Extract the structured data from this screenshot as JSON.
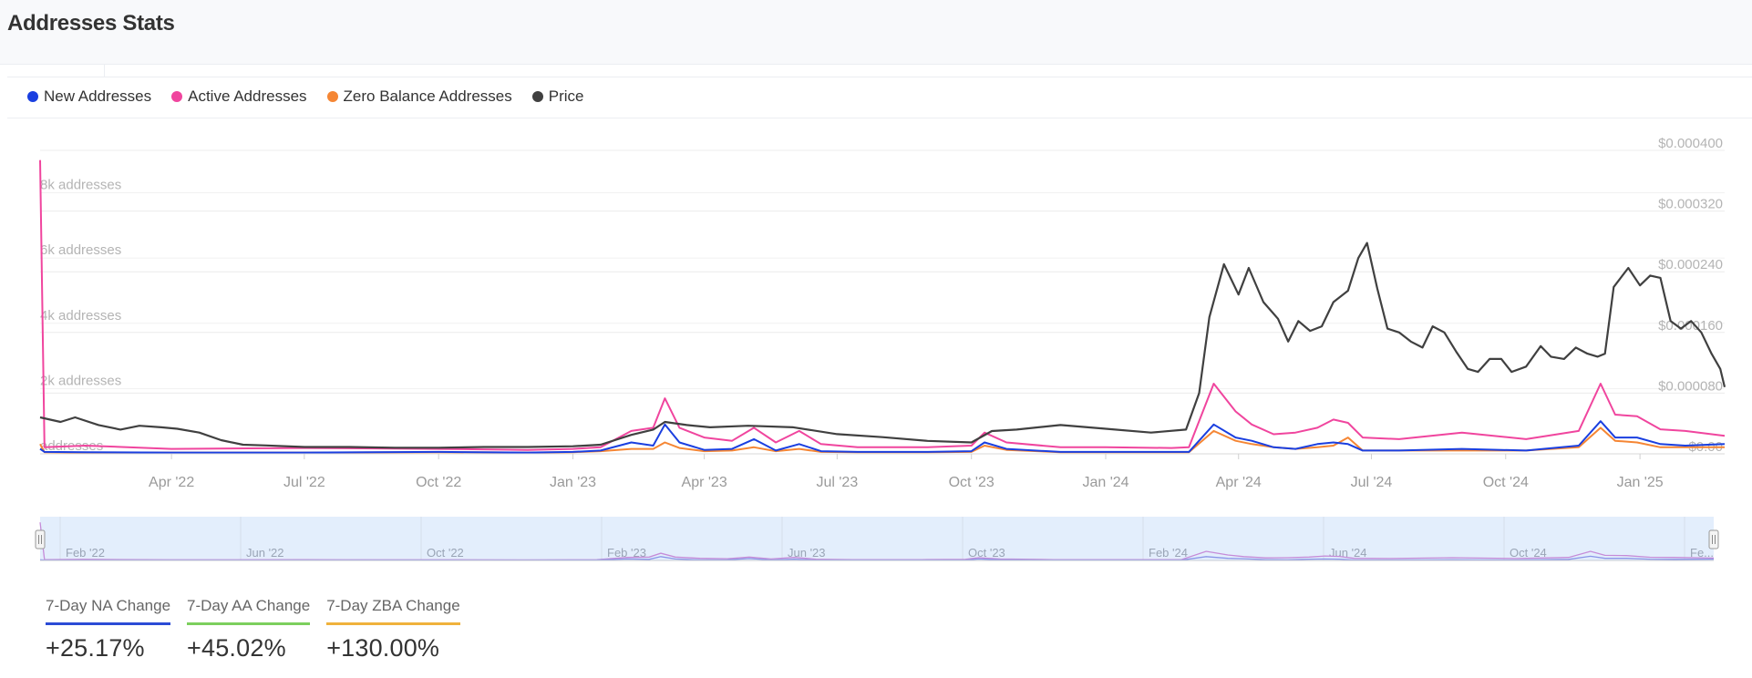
{
  "page": {
    "title": "Addresses Stats"
  },
  "legend": [
    {
      "label": "New Addresses",
      "color": "#1a3fe0"
    },
    {
      "label": "Active Addresses",
      "color": "#f0459e"
    },
    {
      "label": "Zero Balance Addresses",
      "color": "#f58634"
    },
    {
      "label": "Price",
      "color": "#404040"
    }
  ],
  "stats": [
    {
      "label": "7-Day NA Change",
      "value": "+25.17%",
      "color": "#2b4bd6"
    },
    {
      "label": "7-Day AA Change",
      "value": "+45.02%",
      "color": "#7ccf5d"
    },
    {
      "label": "7-Day ZBA Change",
      "value": "+130.00%",
      "color": "#f0b23c"
    }
  ],
  "navigator": {
    "labels": [
      "Feb '22",
      "Jun '22",
      "Oct '22",
      "Feb '23",
      "Jun '23",
      "Oct '23",
      "Feb '24",
      "Jun '24",
      "Oct '24",
      "Fe..."
    ]
  },
  "chart_data": {
    "type": "line",
    "x_axis": {
      "ticks": [
        "Apr '22",
        "Jul '22",
        "Oct '22",
        "Jan '23",
        "Apr '23",
        "Jul '23",
        "Oct '23",
        "Jan '24",
        "Apr '24",
        "Jul '24",
        "Oct '24",
        "Jan '25"
      ],
      "range": [
        "2022-01-01",
        "2025-02-28"
      ]
    },
    "y_axis_left": {
      "range": [
        0,
        9300
      ],
      "ticks": [
        {
          "value": 0,
          "label": "addresses"
        },
        {
          "value": 2000,
          "label": "2k addresses"
        },
        {
          "value": 4000,
          "label": "4k addresses"
        },
        {
          "value": 6000,
          "label": "6k addresses"
        },
        {
          "value": 8000,
          "label": "8k addresses"
        }
      ]
    },
    "y_axis_right": {
      "range": [
        0,
        0.0004
      ],
      "ticks": [
        {
          "value": 0,
          "label": "$0.00"
        },
        {
          "value": 8e-05,
          "label": "$0.000080"
        },
        {
          "value": 0.00016,
          "label": "$0.000160"
        },
        {
          "value": 0.00024,
          "label": "$0.000240"
        },
        {
          "value": 0.00032,
          "label": "$0.000320"
        },
        {
          "value": 0.0004,
          "label": "$0.000400"
        }
      ]
    },
    "grid": true,
    "legend_position": "top-left",
    "series": [
      {
        "name": "New Addresses",
        "color": "#1a3fe0",
        "axis": "left",
        "points": [
          [
            "2022-01-01",
            150
          ],
          [
            "2022-01-04",
            60
          ],
          [
            "2022-02-01",
            50
          ],
          [
            "2022-04-01",
            40
          ],
          [
            "2022-07-01",
            40
          ],
          [
            "2022-10-01",
            60
          ],
          [
            "2022-12-01",
            40
          ],
          [
            "2023-01-01",
            60
          ],
          [
            "2023-01-20",
            100
          ],
          [
            "2023-02-10",
            350
          ],
          [
            "2023-02-25",
            250
          ],
          [
            "2023-03-05",
            900
          ],
          [
            "2023-03-15",
            350
          ],
          [
            "2023-04-01",
            120
          ],
          [
            "2023-04-20",
            150
          ],
          [
            "2023-05-05",
            450
          ],
          [
            "2023-05-20",
            100
          ],
          [
            "2023-06-05",
            300
          ],
          [
            "2023-06-20",
            80
          ],
          [
            "2023-07-15",
            60
          ],
          [
            "2023-09-01",
            60
          ],
          [
            "2023-10-01",
            80
          ],
          [
            "2023-10-10",
            350
          ],
          [
            "2023-10-25",
            150
          ],
          [
            "2023-12-01",
            60
          ],
          [
            "2024-01-01",
            60
          ],
          [
            "2024-02-15",
            60
          ],
          [
            "2024-02-27",
            60
          ],
          [
            "2024-03-15",
            900
          ],
          [
            "2024-03-30",
            500
          ],
          [
            "2024-04-10",
            400
          ],
          [
            "2024-04-25",
            200
          ],
          [
            "2024-05-10",
            150
          ],
          [
            "2024-05-25",
            300
          ],
          [
            "2024-06-05",
            350
          ],
          [
            "2024-06-15",
            300
          ],
          [
            "2024-06-25",
            100
          ],
          [
            "2024-07-20",
            100
          ],
          [
            "2024-09-01",
            150
          ],
          [
            "2024-10-15",
            100
          ],
          [
            "2024-11-20",
            250
          ],
          [
            "2024-12-05",
            1000
          ],
          [
            "2024-12-15",
            500
          ],
          [
            "2024-12-30",
            500
          ],
          [
            "2025-01-15",
            300
          ],
          [
            "2025-02-01",
            250
          ],
          [
            "2025-02-28",
            300
          ]
        ]
      },
      {
        "name": "Active Addresses",
        "color": "#f0459e",
        "axis": "left",
        "points": [
          [
            "2022-01-01",
            9000
          ],
          [
            "2022-01-04",
            200
          ],
          [
            "2022-02-01",
            250
          ],
          [
            "2022-04-01",
            150
          ],
          [
            "2022-07-01",
            180
          ],
          [
            "2022-10-01",
            150
          ],
          [
            "2022-12-01",
            120
          ],
          [
            "2023-01-01",
            150
          ],
          [
            "2023-01-20",
            200
          ],
          [
            "2023-02-10",
            700
          ],
          [
            "2023-02-25",
            800
          ],
          [
            "2023-03-05",
            1700
          ],
          [
            "2023-03-15",
            800
          ],
          [
            "2023-04-01",
            500
          ],
          [
            "2023-04-20",
            400
          ],
          [
            "2023-05-05",
            800
          ],
          [
            "2023-05-20",
            350
          ],
          [
            "2023-06-05",
            700
          ],
          [
            "2023-06-20",
            300
          ],
          [
            "2023-07-15",
            200
          ],
          [
            "2023-09-01",
            200
          ],
          [
            "2023-10-01",
            250
          ],
          [
            "2023-10-10",
            650
          ],
          [
            "2023-10-25",
            350
          ],
          [
            "2023-12-01",
            200
          ],
          [
            "2024-01-01",
            200
          ],
          [
            "2024-02-15",
            180
          ],
          [
            "2024-02-27",
            200
          ],
          [
            "2024-03-15",
            2150
          ],
          [
            "2024-03-30",
            1300
          ],
          [
            "2024-04-10",
            900
          ],
          [
            "2024-04-25",
            600
          ],
          [
            "2024-05-10",
            650
          ],
          [
            "2024-05-25",
            800
          ],
          [
            "2024-06-05",
            1050
          ],
          [
            "2024-06-15",
            950
          ],
          [
            "2024-06-25",
            500
          ],
          [
            "2024-07-20",
            450
          ],
          [
            "2024-09-01",
            650
          ],
          [
            "2024-10-15",
            450
          ],
          [
            "2024-11-20",
            700
          ],
          [
            "2024-12-05",
            2150
          ],
          [
            "2024-12-15",
            1200
          ],
          [
            "2024-12-30",
            1150
          ],
          [
            "2025-01-15",
            750
          ],
          [
            "2025-02-01",
            700
          ],
          [
            "2025-02-28",
            550
          ]
        ]
      },
      {
        "name": "Zero Balance Addresses",
        "color": "#f58634",
        "axis": "left",
        "points": [
          [
            "2022-01-01",
            300
          ],
          [
            "2022-01-04",
            50
          ],
          [
            "2022-02-01",
            40
          ],
          [
            "2022-04-01",
            40
          ],
          [
            "2022-07-01",
            40
          ],
          [
            "2022-10-01",
            50
          ],
          [
            "2022-12-01",
            40
          ],
          [
            "2023-01-01",
            50
          ],
          [
            "2023-01-20",
            80
          ],
          [
            "2023-02-10",
            150
          ],
          [
            "2023-02-25",
            150
          ],
          [
            "2023-03-05",
            350
          ],
          [
            "2023-03-15",
            180
          ],
          [
            "2023-04-01",
            80
          ],
          [
            "2023-04-20",
            100
          ],
          [
            "2023-05-05",
            200
          ],
          [
            "2023-05-20",
            80
          ],
          [
            "2023-06-05",
            150
          ],
          [
            "2023-06-20",
            60
          ],
          [
            "2023-07-15",
            50
          ],
          [
            "2023-09-01",
            50
          ],
          [
            "2023-10-01",
            60
          ],
          [
            "2023-10-10",
            250
          ],
          [
            "2023-10-25",
            120
          ],
          [
            "2023-12-01",
            50
          ],
          [
            "2024-01-01",
            50
          ],
          [
            "2024-02-15",
            50
          ],
          [
            "2024-02-27",
            50
          ],
          [
            "2024-03-15",
            700
          ],
          [
            "2024-03-30",
            400
          ],
          [
            "2024-04-10",
            300
          ],
          [
            "2024-04-25",
            200
          ],
          [
            "2024-05-10",
            150
          ],
          [
            "2024-05-25",
            200
          ],
          [
            "2024-06-05",
            250
          ],
          [
            "2024-06-15",
            500
          ],
          [
            "2024-06-25",
            100
          ],
          [
            "2024-07-20",
            100
          ],
          [
            "2024-09-01",
            100
          ],
          [
            "2024-10-15",
            100
          ],
          [
            "2024-11-20",
            200
          ],
          [
            "2024-12-05",
            800
          ],
          [
            "2024-12-15",
            400
          ],
          [
            "2024-12-30",
            350
          ],
          [
            "2025-01-15",
            200
          ],
          [
            "2025-02-01",
            200
          ],
          [
            "2025-02-28",
            200
          ]
        ]
      },
      {
        "name": "Price",
        "color": "#404040",
        "axis": "right",
        "points": [
          [
            "2022-01-01",
            4.8e-05
          ],
          [
            "2022-01-15",
            4.2e-05
          ],
          [
            "2022-01-25",
            4.8e-05
          ],
          [
            "2022-02-10",
            3.8e-05
          ],
          [
            "2022-02-25",
            3.2e-05
          ],
          [
            "2022-03-10",
            3.7e-05
          ],
          [
            "2022-03-25",
            3.5e-05
          ],
          [
            "2022-04-05",
            3.3e-05
          ],
          [
            "2022-04-20",
            2.8e-05
          ],
          [
            "2022-05-05",
            1.8e-05
          ],
          [
            "2022-05-20",
            1.2e-05
          ],
          [
            "2022-06-05",
            1.1e-05
          ],
          [
            "2022-07-01",
            9e-06
          ],
          [
            "2022-08-01",
            9e-06
          ],
          [
            "2022-09-01",
            8e-06
          ],
          [
            "2022-10-01",
            8e-06
          ],
          [
            "2022-11-01",
            9e-06
          ],
          [
            "2022-12-01",
            9e-06
          ],
          [
            "2023-01-01",
            1e-05
          ],
          [
            "2023-01-20",
            1.2e-05
          ],
          [
            "2023-02-10",
            2.5e-05
          ],
          [
            "2023-02-25",
            3.2e-05
          ],
          [
            "2023-03-05",
            4.2e-05
          ],
          [
            "2023-03-20",
            3.8e-05
          ],
          [
            "2023-04-05",
            3.5e-05
          ],
          [
            "2023-05-01",
            3.7e-05
          ],
          [
            "2023-06-01",
            3.5e-05
          ],
          [
            "2023-07-01",
            2.6e-05
          ],
          [
            "2023-08-01",
            2.2e-05
          ],
          [
            "2023-09-01",
            1.7e-05
          ],
          [
            "2023-10-01",
            1.5e-05
          ],
          [
            "2023-10-15",
            3e-05
          ],
          [
            "2023-11-01",
            3.2e-05
          ],
          [
            "2023-12-01",
            3.8e-05
          ],
          [
            "2024-01-01",
            3.3e-05
          ],
          [
            "2024-02-01",
            2.8e-05
          ],
          [
            "2024-02-25",
            3.2e-05
          ],
          [
            "2024-03-05",
            8e-05
          ],
          [
            "2024-03-12",
            0.00018
          ],
          [
            "2024-03-22",
            0.00025
          ],
          [
            "2024-04-01",
            0.00021
          ],
          [
            "2024-04-08",
            0.000245
          ],
          [
            "2024-04-18",
            0.0002
          ],
          [
            "2024-04-28",
            0.000178
          ],
          [
            "2024-05-05",
            0.000148
          ],
          [
            "2024-05-12",
            0.000175
          ],
          [
            "2024-05-20",
            0.000162
          ],
          [
            "2024-05-28",
            0.000168
          ],
          [
            "2024-06-05",
            0.0002
          ],
          [
            "2024-06-15",
            0.000215
          ],
          [
            "2024-06-22",
            0.000258
          ],
          [
            "2024-06-28",
            0.000278
          ],
          [
            "2024-07-05",
            0.000218
          ],
          [
            "2024-07-12",
            0.000165
          ],
          [
            "2024-07-20",
            0.00016
          ],
          [
            "2024-07-28",
            0.000148
          ],
          [
            "2024-08-05",
            0.00014
          ],
          [
            "2024-08-12",
            0.000168
          ],
          [
            "2024-08-20",
            0.00016
          ],
          [
            "2024-08-28",
            0.000135
          ],
          [
            "2024-09-05",
            0.000112
          ],
          [
            "2024-09-12",
            0.000108
          ],
          [
            "2024-09-20",
            0.000125
          ],
          [
            "2024-09-28",
            0.000125
          ],
          [
            "2024-10-05",
            0.000108
          ],
          [
            "2024-10-15",
            0.000115
          ],
          [
            "2024-10-25",
            0.000142
          ],
          [
            "2024-11-01",
            0.000128
          ],
          [
            "2024-11-10",
            0.000125
          ],
          [
            "2024-11-18",
            0.00014
          ],
          [
            "2024-11-26",
            0.000132
          ],
          [
            "2024-12-03",
            0.000128
          ],
          [
            "2024-12-08",
            0.000132
          ],
          [
            "2024-12-14",
            0.00022
          ],
          [
            "2024-12-24",
            0.000245
          ],
          [
            "2025-01-01",
            0.000222
          ],
          [
            "2025-01-08",
            0.000235
          ],
          [
            "2025-01-15",
            0.000232
          ],
          [
            "2025-01-22",
            0.000175
          ],
          [
            "2025-01-29",
            0.000165
          ],
          [
            "2025-02-05",
            0.000175
          ],
          [
            "2025-02-12",
            0.00016
          ],
          [
            "2025-02-19",
            0.000132
          ],
          [
            "2025-02-25",
            0.000112
          ],
          [
            "2025-02-28",
            8.8e-05
          ]
        ]
      }
    ]
  }
}
